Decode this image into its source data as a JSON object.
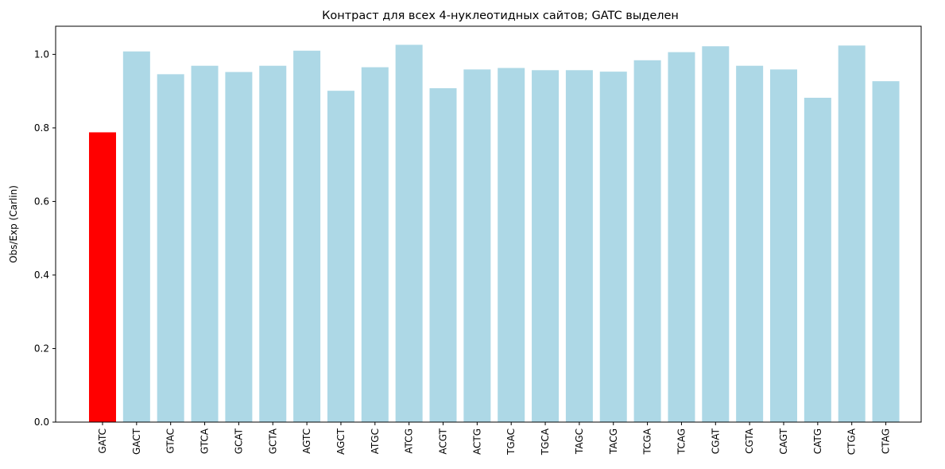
{
  "chart_data": {
    "type": "bar",
    "title": "Контраст для всех 4-нуклеотидных сайтов; GATC выделен",
    "xlabel": "",
    "ylabel": "Obs/Exp (Carlin)",
    "categories": [
      "GATC",
      "GACT",
      "GTAC",
      "GTCA",
      "GCAT",
      "GCTA",
      "AGTC",
      "AGCT",
      "ATGC",
      "ATCG",
      "ACGT",
      "ACTG",
      "TGAC",
      "TGCA",
      "TAGC",
      "TACG",
      "TCGA",
      "TCAG",
      "CGAT",
      "CGTA",
      "CAGT",
      "CATG",
      "CTGA",
      "CTAG"
    ],
    "values": [
      0.788,
      1.008,
      0.946,
      0.969,
      0.952,
      0.969,
      1.01,
      0.901,
      0.965,
      1.026,
      0.908,
      0.959,
      0.963,
      0.957,
      0.957,
      0.953,
      0.984,
      1.006,
      1.022,
      0.969,
      0.959,
      0.882,
      1.024,
      0.927
    ],
    "highlight": "GATC",
    "colors": {
      "default": "#add8e6",
      "highlight": "#ff0000"
    },
    "ylim": [
      0,
      1.0765
    ],
    "yticks": [
      "0.0",
      "0.2",
      "0.4",
      "0.6",
      "0.8",
      "1.0"
    ],
    "grid": false,
    "legend": "none"
  }
}
